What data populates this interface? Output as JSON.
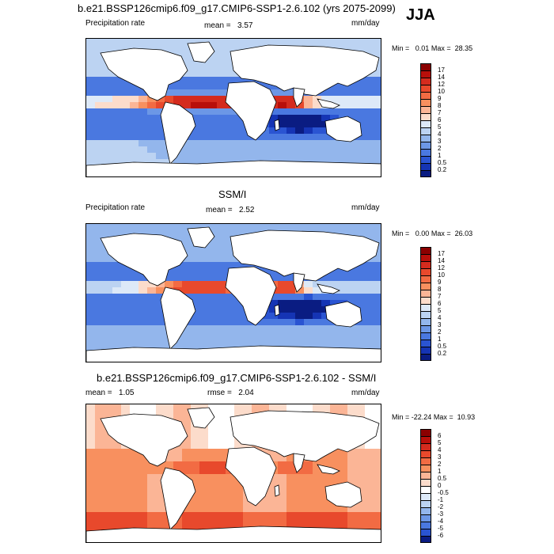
{
  "season": "JJA",
  "units": "mm/day",
  "panels": [
    {
      "title": "b.e21.BSSP126cmip6.f09_g17.CMIP6-SSP1-2.6.102 (yrs 2075-2099)",
      "left_label": "Precipitation rate",
      "stat1_label": "mean =",
      "stat1_value": "3.57",
      "right_label": "mm/day",
      "min_label": "Min =",
      "min_value": "0.01",
      "max_label": "Max =",
      "max_value": "28.35"
    },
    {
      "title": "SSM/I",
      "left_label": "Precipitation rate",
      "stat1_label": "mean =",
      "stat1_value": "2.52",
      "right_label": "mm/day",
      "min_label": "Min =",
      "min_value": "0.00",
      "max_label": "Max =",
      "max_value": "26.03"
    },
    {
      "title": "b.e21.BSSP126cmip6.f09_g17.CMIP6-SSP1-2.6.102 - SSM/I",
      "left_label": "mean =",
      "left_value": "1.05",
      "stat1_label": "rmse =",
      "stat1_value": "2.04",
      "right_label": "mm/day",
      "min_label": "Min =",
      "min_value": "-22.24",
      "max_label": "Max =",
      "max_value": "10.93"
    }
  ],
  "chart_data": [
    {
      "type": "heatmap",
      "title": "b.e21.BSSP126cmip6.f09_g17.CMIP6-SSP1-2.6.102 (yrs 2075-2099)",
      "variable": "Precipitation rate",
      "units": "mm/day",
      "mean": 3.57,
      "min": 0.01,
      "max": 28.35,
      "colorbar_levels": [
        "17",
        "14",
        "12",
        "10",
        "9",
        "8",
        "7",
        "6",
        "5",
        "4",
        "3",
        "2",
        "1",
        "0.5",
        "0.2"
      ],
      "colors": [
        "#8b0000",
        "#b80f0a",
        "#d42b1e",
        "#e8492c",
        "#f26b43",
        "#f8905f",
        "#fbb596",
        "#fcdccb",
        "#dde9f8",
        "#bcd3f2",
        "#93b6ec",
        "#6c97e6",
        "#4a78e0",
        "#2a54d2",
        "#1534b4",
        "#0a1c82"
      ]
    },
    {
      "type": "heatmap",
      "title": "SSM/I",
      "variable": "Precipitation rate",
      "units": "mm/day",
      "mean": 2.52,
      "min": 0.0,
      "max": 26.03,
      "colorbar_levels": [
        "17",
        "14",
        "12",
        "10",
        "9",
        "8",
        "7",
        "6",
        "5",
        "4",
        "3",
        "2",
        "1",
        "0.5",
        "0.2"
      ],
      "colors": [
        "#8b0000",
        "#b80f0a",
        "#d42b1e",
        "#e8492c",
        "#f26b43",
        "#f8905f",
        "#fbb596",
        "#fcdccb",
        "#dde9f8",
        "#bcd3f2",
        "#93b6ec",
        "#6c97e6",
        "#4a78e0",
        "#2a54d2",
        "#1534b4",
        "#0a1c82"
      ]
    },
    {
      "type": "heatmap",
      "title": "b.e21.BSSP126cmip6.f09_g17.CMIP6-SSP1-2.6.102 - SSM/I",
      "units": "mm/day",
      "mean": 1.05,
      "rmse": 2.04,
      "min": -22.24,
      "max": 10.93,
      "colorbar_levels": [
        "6",
        "5",
        "4",
        "3",
        "2",
        "1",
        "0.5",
        "0",
        "-0.5",
        "-1",
        "-2",
        "-3",
        "-4",
        "-5",
        "-6"
      ],
      "colors": [
        "#8b0000",
        "#b80f0a",
        "#d42b1e",
        "#e8492c",
        "#f26b43",
        "#f8905f",
        "#fbb596",
        "#fcdccb",
        "#ffffff",
        "#dde9f8",
        "#bcd3f2",
        "#93b6ec",
        "#6c97e6",
        "#4a78e0",
        "#2a54d2",
        "#0a1c82"
      ]
    }
  ]
}
